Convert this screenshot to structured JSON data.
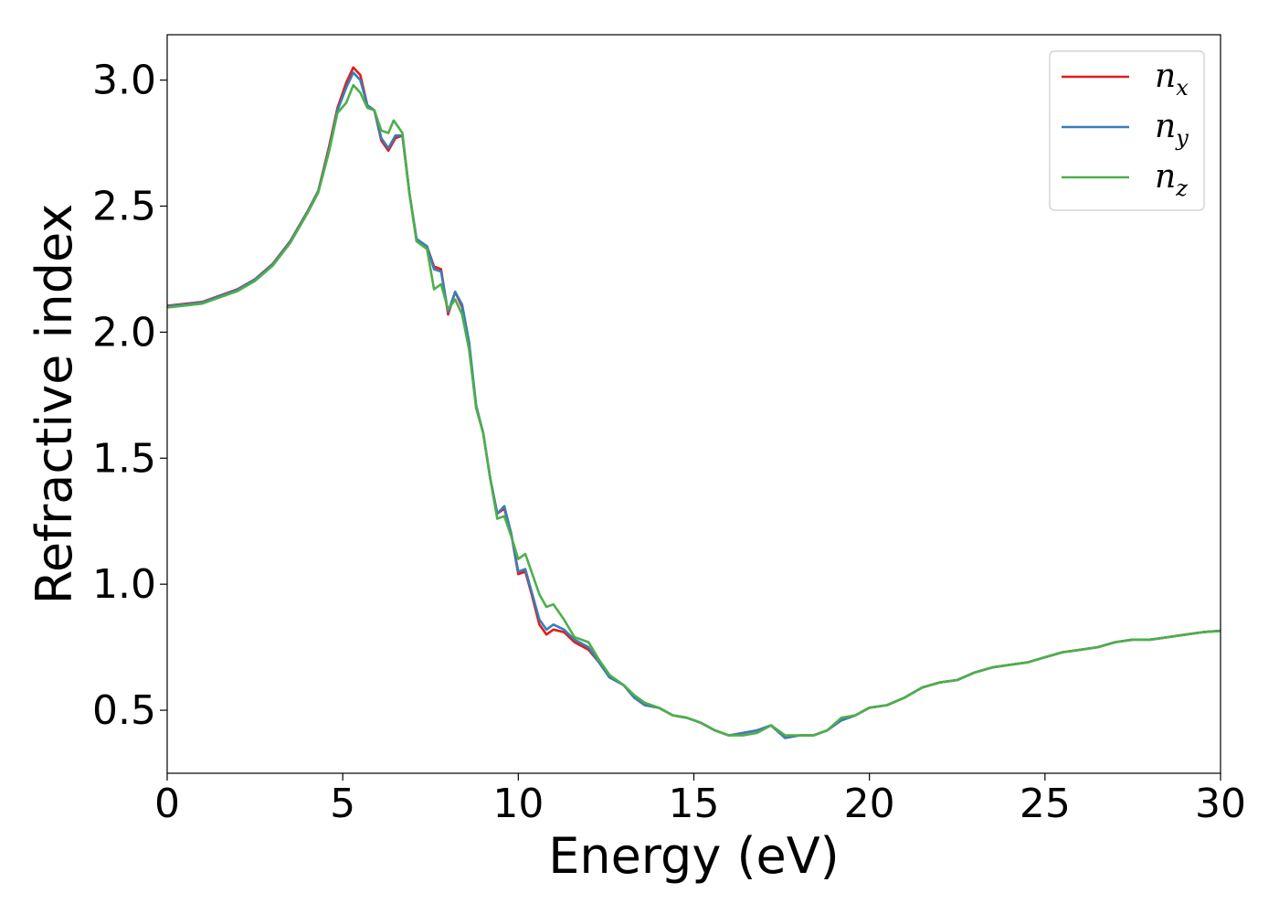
{
  "chart_data": {
    "type": "line",
    "xlabel": "Energy (eV)",
    "ylabel": "Refractive index",
    "xlim": [
      0,
      30
    ],
    "ylim": [
      0.25,
      3.18
    ],
    "x_ticks": [
      0,
      5,
      10,
      15,
      20,
      25,
      30
    ],
    "y_ticks": [
      0.5,
      1.0,
      1.5,
      2.0,
      2.5,
      3.0
    ],
    "grid": false,
    "legend_position": "top-right",
    "series": [
      {
        "name": "n_x",
        "label_main": "n",
        "label_sub": "x",
        "color": "#e41a1c",
        "points": [
          [
            0,
            2.105
          ],
          [
            1,
            2.12
          ],
          [
            2,
            2.17
          ],
          [
            2.5,
            2.21
          ],
          [
            3,
            2.27
          ],
          [
            3.5,
            2.36
          ],
          [
            4,
            2.48
          ],
          [
            4.3,
            2.56
          ],
          [
            4.6,
            2.73
          ],
          [
            4.85,
            2.89
          ],
          [
            5.1,
            2.99
          ],
          [
            5.3,
            3.05
          ],
          [
            5.5,
            3.02
          ],
          [
            5.7,
            2.9
          ],
          [
            5.9,
            2.88
          ],
          [
            6.1,
            2.76
          ],
          [
            6.3,
            2.72
          ],
          [
            6.5,
            2.77
          ],
          [
            6.7,
            2.78
          ],
          [
            6.9,
            2.55
          ],
          [
            7.1,
            2.37
          ],
          [
            7.4,
            2.34
          ],
          [
            7.6,
            2.26
          ],
          [
            7.8,
            2.25
          ],
          [
            8.0,
            2.07
          ],
          [
            8.2,
            2.16
          ],
          [
            8.4,
            2.1
          ],
          [
            8.6,
            1.95
          ],
          [
            8.8,
            1.7
          ],
          [
            9.0,
            1.6
          ],
          [
            9.2,
            1.42
          ],
          [
            9.4,
            1.28
          ],
          [
            9.6,
            1.3
          ],
          [
            9.8,
            1.2
          ],
          [
            10.0,
            1.04
          ],
          [
            10.2,
            1.05
          ],
          [
            10.4,
            0.95
          ],
          [
            10.6,
            0.84
          ],
          [
            10.8,
            0.8
          ],
          [
            11.0,
            0.82
          ],
          [
            11.3,
            0.81
          ],
          [
            11.6,
            0.77
          ],
          [
            12.0,
            0.74
          ],
          [
            12.3,
            0.69
          ],
          [
            12.6,
            0.63
          ],
          [
            13.0,
            0.6
          ],
          [
            13.3,
            0.55
          ],
          [
            13.6,
            0.52
          ],
          [
            14.0,
            0.51
          ],
          [
            14.4,
            0.48
          ],
          [
            14.8,
            0.47
          ],
          [
            15.2,
            0.45
          ],
          [
            15.6,
            0.42
          ],
          [
            16.0,
            0.4
          ],
          [
            16.4,
            0.41
          ],
          [
            16.8,
            0.42
          ],
          [
            17.2,
            0.44
          ],
          [
            17.6,
            0.39
          ],
          [
            18.0,
            0.4
          ],
          [
            18.4,
            0.4
          ],
          [
            18.8,
            0.42
          ],
          [
            19.2,
            0.46
          ],
          [
            19.6,
            0.48
          ],
          [
            20.0,
            0.51
          ],
          [
            20.5,
            0.52
          ],
          [
            21.0,
            0.55
          ],
          [
            21.5,
            0.59
          ],
          [
            22.0,
            0.61
          ],
          [
            22.5,
            0.62
          ],
          [
            23.0,
            0.65
          ],
          [
            23.5,
            0.67
          ],
          [
            24.0,
            0.68
          ],
          [
            24.5,
            0.69
          ],
          [
            25.0,
            0.71
          ],
          [
            25.5,
            0.73
          ],
          [
            26.0,
            0.74
          ],
          [
            26.5,
            0.75
          ],
          [
            27.0,
            0.77
          ],
          [
            27.5,
            0.78
          ],
          [
            28.0,
            0.78
          ],
          [
            28.5,
            0.79
          ],
          [
            29.0,
            0.8
          ],
          [
            29.5,
            0.81
          ],
          [
            30.0,
            0.815
          ]
        ]
      },
      {
        "name": "n_y",
        "label_main": "n",
        "label_sub": "y",
        "color": "#377eb8",
        "points": [
          [
            0,
            2.102
          ],
          [
            1,
            2.118
          ],
          [
            2,
            2.168
          ],
          [
            2.5,
            2.208
          ],
          [
            3,
            2.268
          ],
          [
            3.5,
            2.358
          ],
          [
            4,
            2.478
          ],
          [
            4.3,
            2.558
          ],
          [
            4.6,
            2.72
          ],
          [
            4.85,
            2.88
          ],
          [
            5.1,
            2.97
          ],
          [
            5.3,
            3.03
          ],
          [
            5.5,
            3.0
          ],
          [
            5.7,
            2.9
          ],
          [
            5.9,
            2.88
          ],
          [
            6.1,
            2.77
          ],
          [
            6.3,
            2.73
          ],
          [
            6.5,
            2.78
          ],
          [
            6.7,
            2.78
          ],
          [
            6.9,
            2.55
          ],
          [
            7.1,
            2.37
          ],
          [
            7.4,
            2.34
          ],
          [
            7.6,
            2.25
          ],
          [
            7.8,
            2.24
          ],
          [
            8.0,
            2.08
          ],
          [
            8.2,
            2.16
          ],
          [
            8.4,
            2.11
          ],
          [
            8.6,
            1.96
          ],
          [
            8.8,
            1.71
          ],
          [
            9.0,
            1.6
          ],
          [
            9.2,
            1.42
          ],
          [
            9.4,
            1.28
          ],
          [
            9.6,
            1.31
          ],
          [
            9.8,
            1.2
          ],
          [
            10.0,
            1.05
          ],
          [
            10.2,
            1.06
          ],
          [
            10.4,
            0.96
          ],
          [
            10.6,
            0.86
          ],
          [
            10.8,
            0.82
          ],
          [
            11.0,
            0.84
          ],
          [
            11.3,
            0.82
          ],
          [
            11.6,
            0.78
          ],
          [
            12.0,
            0.75
          ],
          [
            12.3,
            0.69
          ],
          [
            12.6,
            0.63
          ],
          [
            13.0,
            0.6
          ],
          [
            13.3,
            0.55
          ],
          [
            13.6,
            0.52
          ],
          [
            14.0,
            0.51
          ],
          [
            14.4,
            0.48
          ],
          [
            14.8,
            0.47
          ],
          [
            15.2,
            0.45
          ],
          [
            15.6,
            0.42
          ],
          [
            16.0,
            0.4
          ],
          [
            16.4,
            0.41
          ],
          [
            16.8,
            0.42
          ],
          [
            17.2,
            0.44
          ],
          [
            17.6,
            0.39
          ],
          [
            18.0,
            0.4
          ],
          [
            18.4,
            0.4
          ],
          [
            18.8,
            0.42
          ],
          [
            19.2,
            0.46
          ],
          [
            19.6,
            0.48
          ],
          [
            20.0,
            0.51
          ],
          [
            20.5,
            0.52
          ],
          [
            21.0,
            0.55
          ],
          [
            21.5,
            0.59
          ],
          [
            22.0,
            0.61
          ],
          [
            22.5,
            0.62
          ],
          [
            23.0,
            0.65
          ],
          [
            23.5,
            0.67
          ],
          [
            24.0,
            0.68
          ],
          [
            24.5,
            0.69
          ],
          [
            25.0,
            0.71
          ],
          [
            25.5,
            0.73
          ],
          [
            26.0,
            0.74
          ],
          [
            26.5,
            0.75
          ],
          [
            27.0,
            0.77
          ],
          [
            27.5,
            0.78
          ],
          [
            28.0,
            0.78
          ],
          [
            28.5,
            0.79
          ],
          [
            29.0,
            0.8
          ],
          [
            29.5,
            0.81
          ],
          [
            30.0,
            0.815
          ]
        ]
      },
      {
        "name": "n_z",
        "label_main": "n",
        "label_sub": "z",
        "color": "#4daf4a",
        "points": [
          [
            0,
            2.098
          ],
          [
            1,
            2.113
          ],
          [
            2,
            2.163
          ],
          [
            2.5,
            2.203
          ],
          [
            3,
            2.263
          ],
          [
            3.5,
            2.353
          ],
          [
            4,
            2.473
          ],
          [
            4.3,
            2.553
          ],
          [
            4.6,
            2.71
          ],
          [
            4.85,
            2.87
          ],
          [
            5.1,
            2.91
          ],
          [
            5.3,
            2.98
          ],
          [
            5.5,
            2.95
          ],
          [
            5.7,
            2.89
          ],
          [
            5.9,
            2.88
          ],
          [
            6.1,
            2.8
          ],
          [
            6.3,
            2.79
          ],
          [
            6.45,
            2.84
          ],
          [
            6.7,
            2.79
          ],
          [
            6.9,
            2.55
          ],
          [
            7.1,
            2.36
          ],
          [
            7.4,
            2.33
          ],
          [
            7.6,
            2.17
          ],
          [
            7.8,
            2.19
          ],
          [
            8.0,
            2.09
          ],
          [
            8.2,
            2.13
          ],
          [
            8.4,
            2.07
          ],
          [
            8.6,
            1.93
          ],
          [
            8.8,
            1.7
          ],
          [
            9.0,
            1.6
          ],
          [
            9.2,
            1.42
          ],
          [
            9.4,
            1.26
          ],
          [
            9.6,
            1.27
          ],
          [
            9.8,
            1.19
          ],
          [
            10.0,
            1.1
          ],
          [
            10.2,
            1.12
          ],
          [
            10.4,
            1.04
          ],
          [
            10.6,
            0.96
          ],
          [
            10.8,
            0.91
          ],
          [
            11.0,
            0.92
          ],
          [
            11.3,
            0.86
          ],
          [
            11.6,
            0.79
          ],
          [
            12.0,
            0.77
          ],
          [
            12.3,
            0.7
          ],
          [
            12.6,
            0.64
          ],
          [
            13.0,
            0.6
          ],
          [
            13.3,
            0.56
          ],
          [
            13.6,
            0.53
          ],
          [
            14.0,
            0.51
          ],
          [
            14.4,
            0.48
          ],
          [
            14.8,
            0.47
          ],
          [
            15.2,
            0.45
          ],
          [
            15.6,
            0.42
          ],
          [
            16.0,
            0.4
          ],
          [
            16.4,
            0.4
          ],
          [
            16.8,
            0.41
          ],
          [
            17.2,
            0.44
          ],
          [
            17.6,
            0.4
          ],
          [
            18.0,
            0.4
          ],
          [
            18.4,
            0.4
          ],
          [
            18.8,
            0.42
          ],
          [
            19.2,
            0.47
          ],
          [
            19.6,
            0.48
          ],
          [
            20.0,
            0.51
          ],
          [
            20.5,
            0.52
          ],
          [
            21.0,
            0.55
          ],
          [
            21.5,
            0.59
          ],
          [
            22.0,
            0.61
          ],
          [
            22.5,
            0.62
          ],
          [
            23.0,
            0.65
          ],
          [
            23.5,
            0.67
          ],
          [
            24.0,
            0.68
          ],
          [
            24.5,
            0.69
          ],
          [
            25.0,
            0.71
          ],
          [
            25.5,
            0.73
          ],
          [
            26.0,
            0.74
          ],
          [
            26.5,
            0.75
          ],
          [
            27.0,
            0.77
          ],
          [
            27.5,
            0.78
          ],
          [
            28.0,
            0.78
          ],
          [
            28.5,
            0.79
          ],
          [
            29.0,
            0.8
          ],
          [
            29.5,
            0.81
          ],
          [
            30.0,
            0.815
          ]
        ]
      }
    ]
  }
}
